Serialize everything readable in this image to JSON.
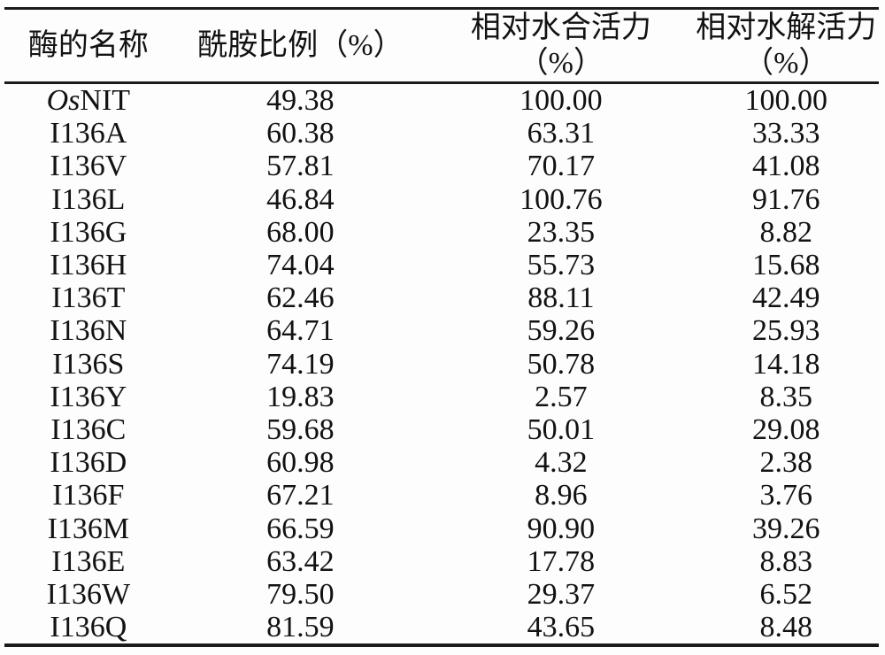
{
  "page": {
    "background": "#fdfdfd",
    "text_color": "#121212",
    "rule_color": "#1b1b1b"
  },
  "table": {
    "header": {
      "col1": "酶的名称",
      "col2": "酰胺比例（%）",
      "col3_line1": "相对水合活力",
      "col3_line2": "（%）",
      "col4_line1": "相对水解活力",
      "col4_line2": "（%）"
    },
    "rows": [
      {
        "name_italic": "Os",
        "name_rest": "NIT",
        "amide": "49.38",
        "hydration": "100.00",
        "hydrolysis": "100.00"
      },
      {
        "name_italic": "",
        "name_rest": "I136A",
        "amide": "60.38",
        "hydration": "63.31",
        "hydrolysis": "33.33"
      },
      {
        "name_italic": "",
        "name_rest": "I136V",
        "amide": "57.81",
        "hydration": "70.17",
        "hydrolysis": "41.08"
      },
      {
        "name_italic": "",
        "name_rest": "I136L",
        "amide": "46.84",
        "hydration": "100.76",
        "hydrolysis": "91.76"
      },
      {
        "name_italic": "",
        "name_rest": "I136G",
        "amide": "68.00",
        "hydration": "23.35",
        "hydrolysis": "8.82"
      },
      {
        "name_italic": "",
        "name_rest": "I136H",
        "amide": "74.04",
        "hydration": "55.73",
        "hydrolysis": "15.68"
      },
      {
        "name_italic": "",
        "name_rest": "I136T",
        "amide": "62.46",
        "hydration": "88.11",
        "hydrolysis": "42.49"
      },
      {
        "name_italic": "",
        "name_rest": "I136N",
        "amide": "64.71",
        "hydration": "59.26",
        "hydrolysis": "25.93"
      },
      {
        "name_italic": "",
        "name_rest": "I136S",
        "amide": "74.19",
        "hydration": "50.78",
        "hydrolysis": "14.18"
      },
      {
        "name_italic": "",
        "name_rest": "I136Y",
        "amide": "19.83",
        "hydration": "2.57",
        "hydrolysis": "8.35"
      },
      {
        "name_italic": "",
        "name_rest": "I136C",
        "amide": "59.68",
        "hydration": "50.01",
        "hydrolysis": "29.08"
      },
      {
        "name_italic": "",
        "name_rest": "I136D",
        "amide": "60.98",
        "hydration": "4.32",
        "hydrolysis": "2.38"
      },
      {
        "name_italic": "",
        "name_rest": "I136F",
        "amide": "67.21",
        "hydration": "8.96",
        "hydrolysis": "3.76"
      },
      {
        "name_italic": "",
        "name_rest": "I136M",
        "amide": "66.59",
        "hydration": "90.90",
        "hydrolysis": "39.26"
      },
      {
        "name_italic": "",
        "name_rest": "I136E",
        "amide": "63.42",
        "hydration": "17.78",
        "hydrolysis": "8.83"
      },
      {
        "name_italic": "",
        "name_rest": "I136W",
        "amide": "79.50",
        "hydration": "29.37",
        "hydrolysis": "6.52"
      },
      {
        "name_italic": "",
        "name_rest": "I136Q",
        "amide": "81.59",
        "hydration": "43.65",
        "hydrolysis": "8.48"
      }
    ]
  }
}
